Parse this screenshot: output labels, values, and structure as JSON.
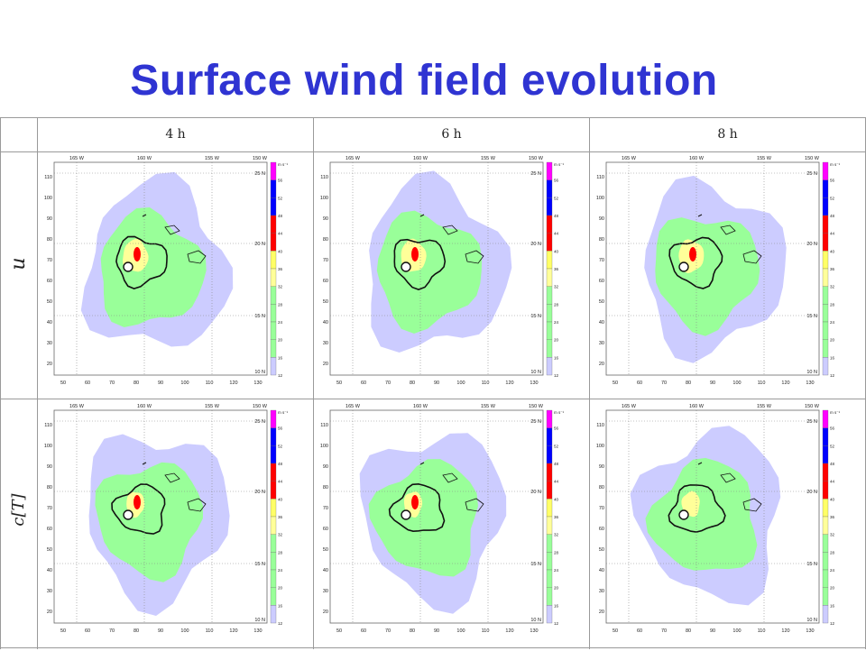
{
  "title": "Surface wind field evolution",
  "columns": [
    "4 h",
    "6 h",
    "8 h"
  ],
  "rows": [
    "u",
    "c[T]"
  ],
  "map": {
    "lon_labels": [
      "165 W",
      "160 W",
      "155 W",
      "150 W"
    ],
    "lat_labels": [
      "25 N",
      "20 N",
      "15 N",
      "10 N"
    ],
    "x_ticks": [
      "50",
      "60",
      "70",
      "80",
      "90",
      "100",
      "110",
      "120",
      "130"
    ],
    "y_ticks": [
      "110",
      "100",
      "90",
      "80",
      "70",
      "60",
      "50",
      "40",
      "30",
      "20"
    ]
  },
  "colorbar": {
    "unit": "m s⁻¹",
    "levels": [
      "56",
      "52",
      "48",
      "44",
      "40",
      "36",
      "32",
      "28",
      "24",
      "20",
      "16",
      "12"
    ],
    "colors": [
      "#ff00ff",
      "#0000ff",
      "#0000ff",
      "#ff0000",
      "#ff0000",
      "#ffff66",
      "#ffff99",
      "#99ff99",
      "#99ff99",
      "#99ff99",
      "#99ff99",
      "#ccccff"
    ]
  }
}
